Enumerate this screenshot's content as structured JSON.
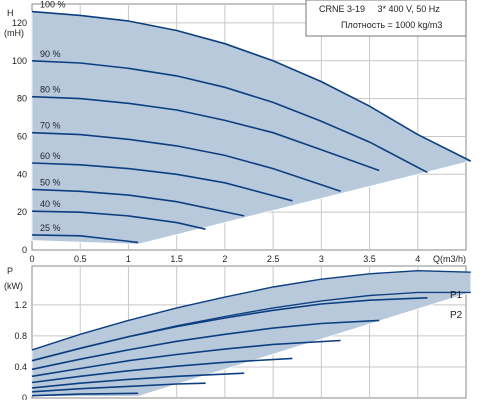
{
  "chart_data": [
    {
      "type": "line",
      "panel": "head",
      "ylabel_lines": [
        "H",
        "(mH)"
      ],
      "xlabel": "Q(m3/h)",
      "xlim": [
        0,
        4.5
      ],
      "ylim": [
        0,
        130
      ],
      "x_ticks": [
        0,
        0.5,
        1,
        1.5,
        2,
        2.5,
        3,
        3.5,
        4
      ],
      "x_tick_labels": [
        "0",
        "0.5",
        "1",
        "1.5",
        "2",
        "2.5",
        "3",
        "3.5",
        "4"
      ],
      "y_ticks": [
        0,
        20,
        40,
        60,
        80,
        100,
        120
      ],
      "y_tick_labels": [
        "0",
        "20",
        "40",
        "60",
        "80",
        "100",
        "120"
      ],
      "grid": true,
      "info_box": [
        "CRNE 3-19     3* 400 V, 50 Hz",
        "Плотность = 1000 kg/m3"
      ],
      "operating_envelope": {
        "x": [
          0,
          0.5,
          1.0,
          1.5,
          2.0,
          2.5,
          3.0,
          3.5,
          4.0,
          4.55,
          1.1,
          0
        ],
        "y": [
          126,
          124,
          121,
          116,
          109,
          100,
          89,
          76,
          61,
          47,
          3,
          5
        ]
      },
      "series": [
        {
          "name": "100 %",
          "x": [
            0,
            0.5,
            1.0,
            1.5,
            2.0,
            2.5,
            3.0,
            3.5,
            4.0,
            4.55
          ],
          "y": [
            126,
            124,
            121,
            116,
            109,
            100,
            89,
            76,
            61,
            47
          ]
        },
        {
          "name": "90 %",
          "x": [
            0,
            0.5,
            1.0,
            1.5,
            2.0,
            2.5,
            3.0,
            3.5,
            4.1
          ],
          "y": [
            100,
            98.8,
            96,
            92,
            86,
            78,
            68,
            57,
            41
          ]
        },
        {
          "name": "80 %",
          "x": [
            0,
            0.5,
            1.0,
            1.5,
            2.0,
            2.5,
            3.0,
            3.6
          ],
          "y": [
            81,
            80,
            77.5,
            74,
            68.5,
            62,
            53,
            42
          ]
        },
        {
          "name": "70 %",
          "x": [
            0,
            0.5,
            1.0,
            1.5,
            2.0,
            2.5,
            3.2
          ],
          "y": [
            62,
            61,
            58.5,
            55,
            50,
            43,
            31
          ]
        },
        {
          "name": "60 %",
          "x": [
            0,
            0.5,
            1.0,
            1.5,
            2.0,
            2.7
          ],
          "y": [
            46,
            45,
            43,
            40,
            35.5,
            26
          ]
        },
        {
          "name": "50 %",
          "x": [
            0,
            0.5,
            1.0,
            1.5,
            2.2
          ],
          "y": [
            32,
            31,
            29,
            25.5,
            18
          ]
        },
        {
          "name": "40 %",
          "x": [
            0,
            0.5,
            1.0,
            1.5,
            1.8
          ],
          "y": [
            20.5,
            20,
            18,
            14.5,
            11
          ]
        },
        {
          "name": "25 %",
          "x": [
            0,
            0.5,
            1.1
          ],
          "y": [
            8,
            7.5,
            4
          ]
        }
      ]
    },
    {
      "type": "line",
      "panel": "power",
      "ylabel_lines": [
        "P",
        "(kW)"
      ],
      "xlim": [
        0,
        4.5
      ],
      "ylim": [
        0,
        1.7
      ],
      "y_ticks": [
        0,
        0.4,
        0.8,
        1.2
      ],
      "y_tick_labels": [
        "0",
        "0.4",
        "0.8",
        "1.2"
      ],
      "grid": true,
      "annotations": [
        "P1",
        "P2"
      ],
      "envelope_p1": {
        "x": [
          0,
          0.5,
          1.0,
          1.5,
          2.0,
          2.5,
          3.0,
          3.5,
          4.0,
          4.55
        ],
        "y": [
          0.62,
          0.82,
          1.0,
          1.16,
          1.3,
          1.43,
          1.53,
          1.6,
          1.64,
          1.62
        ]
      },
      "envelope_p2": {
        "x": [
          0,
          0.5,
          1.0,
          1.5,
          2.0,
          2.5,
          3.0,
          3.5,
          4.0,
          4.55
        ],
        "y": [
          0.48,
          0.64,
          0.79,
          0.93,
          1.05,
          1.16,
          1.25,
          1.32,
          1.36,
          1.36
        ]
      },
      "envelope_bottom": {
        "x": [
          4.55,
          1.1,
          0
        ],
        "y": [
          1.36,
          0.02,
          0.02
        ]
      },
      "series": [
        {
          "name": "P1 100 %",
          "x": [
            0,
            0.5,
            1.0,
            1.5,
            2.0,
            2.5,
            3.0,
            3.5,
            4.0,
            4.55
          ],
          "y": [
            0.62,
            0.82,
            1.0,
            1.16,
            1.3,
            1.43,
            1.53,
            1.6,
            1.64,
            1.62
          ]
        },
        {
          "name": "P2 100 %",
          "x": [
            0,
            0.5,
            1.0,
            1.5,
            2.0,
            2.5,
            3.0,
            3.5,
            4.0,
            4.55
          ],
          "y": [
            0.48,
            0.64,
            0.79,
            0.93,
            1.05,
            1.16,
            1.25,
            1.32,
            1.36,
            1.36
          ]
        },
        {
          "name": "P1 90 %",
          "x": [
            0,
            0.5,
            1.0,
            1.5,
            2.0,
            2.5,
            3.0,
            3.5,
            4.1
          ],
          "y": [
            0.48,
            0.64,
            0.79,
            0.92,
            1.03,
            1.13,
            1.21,
            1.26,
            1.29
          ]
        },
        {
          "name": "P1 80 %",
          "x": [
            0,
            0.5,
            1.0,
            1.5,
            2.0,
            2.5,
            3.0,
            3.6
          ],
          "y": [
            0.37,
            0.5,
            0.62,
            0.73,
            0.82,
            0.9,
            0.96,
            1.0
          ]
        },
        {
          "name": "P1 70 %",
          "x": [
            0,
            0.5,
            1.0,
            1.5,
            2.0,
            2.5,
            3.2
          ],
          "y": [
            0.28,
            0.38,
            0.48,
            0.56,
            0.63,
            0.69,
            0.74
          ]
        },
        {
          "name": "P1 60 %",
          "x": [
            0,
            0.5,
            1.0,
            1.5,
            2.0,
            2.7
          ],
          "y": [
            0.2,
            0.28,
            0.35,
            0.41,
            0.46,
            0.51
          ]
        },
        {
          "name": "P1 50 %",
          "x": [
            0,
            0.5,
            1.0,
            1.5,
            2.2
          ],
          "y": [
            0.13,
            0.19,
            0.24,
            0.28,
            0.32
          ]
        },
        {
          "name": "P1 40 %",
          "x": [
            0,
            0.5,
            1.0,
            1.5,
            1.8
          ],
          "y": [
            0.08,
            0.12,
            0.15,
            0.18,
            0.19
          ]
        },
        {
          "name": "P1 25 %",
          "x": [
            0,
            0.5,
            1.1
          ],
          "y": [
            0.03,
            0.05,
            0.06
          ]
        }
      ]
    }
  ]
}
